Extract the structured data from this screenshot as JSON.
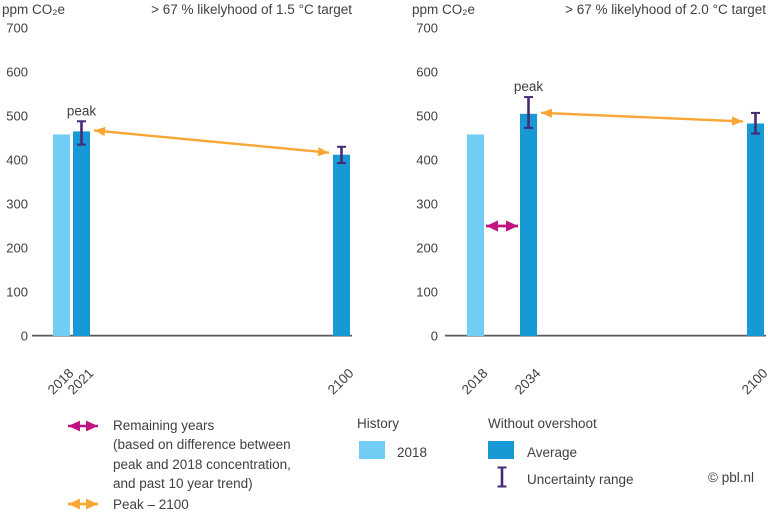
{
  "colors": {
    "history_bar": "#72cdf4",
    "average_bar": "#1699d4",
    "peak_arrow": "#f9a634",
    "remaining_years_arrow": "#c01482",
    "uncertainty": "#462a73",
    "axis_line": "#58595b",
    "text": "#404040",
    "background": "#ffffff"
  },
  "chart_data": [
    {
      "type": "bar",
      "panel": "left",
      "unit_label": "ppm CO₂e",
      "title": "> 67 % likelyhood of 1.5 °C target",
      "ylim": [
        0,
        700
      ],
      "yticks": [
        0,
        100,
        200,
        300,
        400,
        500,
        600,
        700
      ],
      "grid": false,
      "categories": [
        "2018",
        "2021",
        "2100"
      ],
      "bars": [
        {
          "category": "2018",
          "legend": "History 2018",
          "value": 458
        },
        {
          "category": "2021",
          "legend": "Without overshoot Average",
          "value": 465,
          "uncertainty_range": [
            435,
            488
          ],
          "annotation": "peak"
        },
        {
          "category": "2100",
          "legend": "Without overshoot Average",
          "value": 412,
          "uncertainty_range": [
            393,
            430
          ]
        }
      ],
      "peak_arrow": {
        "from_category": "2021",
        "to_category": "2100"
      }
    },
    {
      "type": "bar",
      "panel": "right",
      "unit_label": "ppm CO₂e",
      "title": "> 67 % likelyhood of 2.0 °C target",
      "ylim": [
        0,
        700
      ],
      "yticks": [
        0,
        100,
        200,
        300,
        400,
        500,
        600,
        700
      ],
      "grid": false,
      "categories": [
        "2018",
        "2034",
        "2100"
      ],
      "bars": [
        {
          "category": "2018",
          "legend": "History 2018",
          "value": 458
        },
        {
          "category": "2034",
          "legend": "Without overshoot Average",
          "value": 505,
          "uncertainty_range": [
            473,
            543
          ],
          "annotation": "peak"
        },
        {
          "category": "2100",
          "legend": "Without overshoot Average",
          "value": 483,
          "uncertainty_range": [
            460,
            507
          ]
        }
      ],
      "peak_arrow": {
        "from_category": "2034",
        "to_category": "2100"
      },
      "remaining_years_arrow": {
        "between_categories": [
          "2018",
          "2034"
        ],
        "at_value": 250
      }
    }
  ],
  "legend": {
    "remaining_years": {
      "lines": [
        "Remaining years",
        "(based on difference between",
        "peak and 2018 concentration,",
        "and past 10 year trend)"
      ]
    },
    "peak_2100_label": "Peak – 2100",
    "history_heading": "History",
    "history_item_label": "2018",
    "overshoot_heading": "Without overshoot",
    "average_label": "Average",
    "uncertainty_label": "Uncertainty range"
  },
  "copyright": "© pbl.nl"
}
